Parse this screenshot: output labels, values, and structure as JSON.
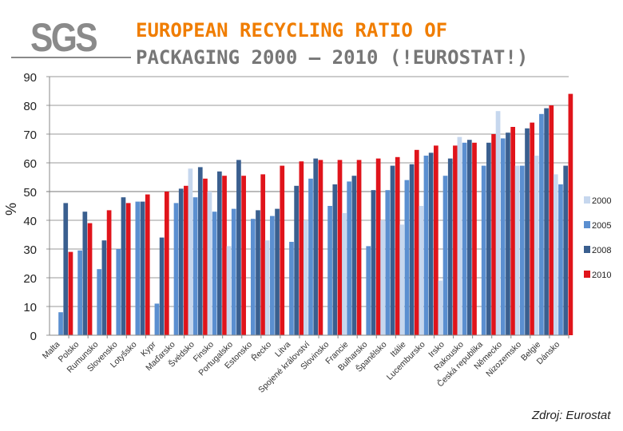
{
  "header": {
    "logo_text": "SGS",
    "title_line1": "EUROPEAN RECYCLING RATIO OF",
    "title_line2": "PACKAGING 2000 – 2010 (!EUROSTAT!)"
  },
  "source": "Zdroj: Eurostat",
  "chart_data": {
    "type": "bar",
    "title": "",
    "xlabel": "",
    "ylabel": "%",
    "ylim": [
      0,
      90
    ],
    "yticks": [
      0,
      10,
      20,
      30,
      40,
      50,
      60,
      70,
      80,
      90
    ],
    "grid": true,
    "legend_position": "right",
    "categories": [
      "Malta",
      "Polsko",
      "Rumunsko",
      "Slovensko",
      "Lotyšsko",
      "Kypr",
      "Maďarsko",
      "Švédsko",
      "Finsko",
      "Portugalsko",
      "Estonsko",
      "Řecko",
      "Litva",
      "Spojené království",
      "Slovinsko",
      "Francie",
      "Bulharsko",
      "Španělsko",
      "Itálie",
      "Lucembursko",
      "Irsko",
      "Rakousko",
      "Česká republika",
      "Německo",
      "Nizozemsko",
      "Belgie",
      "Dánsko"
    ],
    "series": [
      {
        "name": "2000",
        "color": "#c6d7ee",
        "values": [
          null,
          null,
          null,
          null,
          null,
          null,
          null,
          58,
          50,
          31,
          null,
          33,
          null,
          40,
          null,
          42.5,
          null,
          40,
          38.5,
          45,
          19,
          69,
          null,
          78,
          59,
          62.5,
          56
        ]
      },
      {
        "name": "2005",
        "color": "#5b8fd0",
        "values": [
          8,
          29.5,
          23,
          30,
          46.5,
          11,
          46,
          48,
          43,
          44,
          40.5,
          41.5,
          32.5,
          54.5,
          45,
          53.5,
          31,
          50.5,
          54,
          62.5,
          55.5,
          67,
          59,
          68.5,
          59,
          77,
          52.5
        ]
      },
      {
        "name": "2008",
        "color": "#3a5f8f",
        "values": [
          46,
          43,
          33,
          48,
          46.5,
          34,
          51,
          58.5,
          57,
          61,
          43.5,
          44,
          52,
          61.5,
          52.5,
          55.5,
          50.5,
          59,
          59.5,
          63.5,
          61.5,
          68,
          67,
          70.5,
          72,
          79,
          59
        ]
      },
      {
        "name": "2010",
        "color": "#e0141b",
        "values": [
          29,
          39,
          43.5,
          46,
          49,
          50,
          52,
          54.5,
          55.5,
          55.5,
          56,
          59,
          60.5,
          61,
          61,
          61,
          61.5,
          62,
          64.5,
          66,
          66,
          67,
          70,
          72.5,
          74,
          80,
          84
        ]
      }
    ]
  }
}
